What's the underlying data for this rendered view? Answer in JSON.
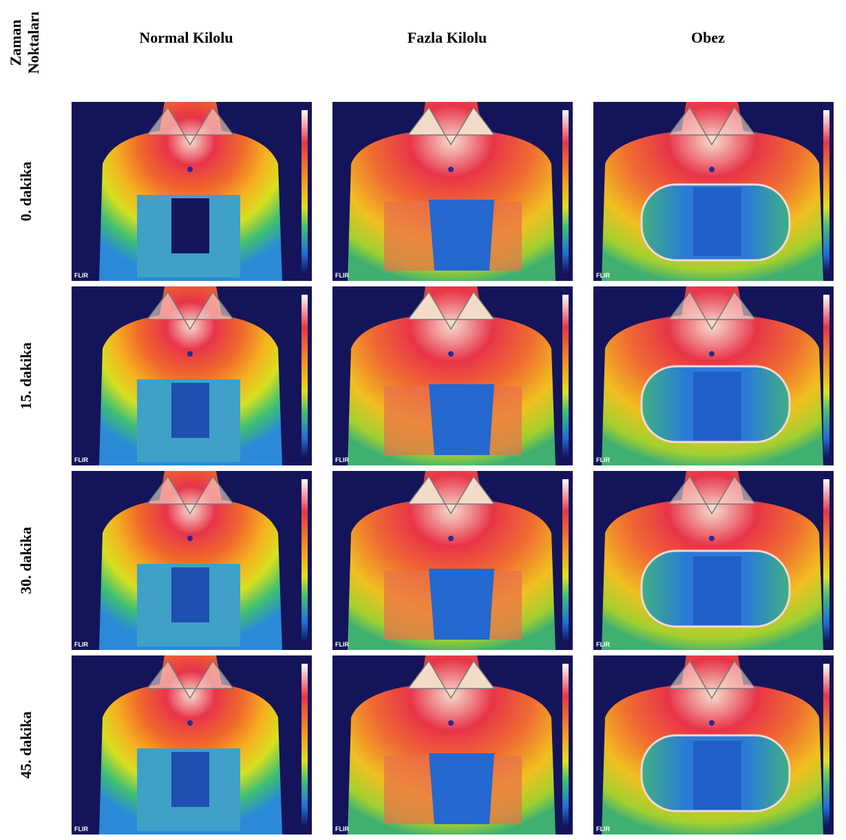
{
  "corner_label": [
    "Zaman",
    "Noktaları"
  ],
  "columns": [
    "Normal Kilolu",
    "Fazla Kilolu",
    "Obez"
  ],
  "rows": [
    "0. dakika",
    "15. dakika",
    "30. dakika",
    "45. dakika"
  ],
  "watermark": "FLIR"
}
